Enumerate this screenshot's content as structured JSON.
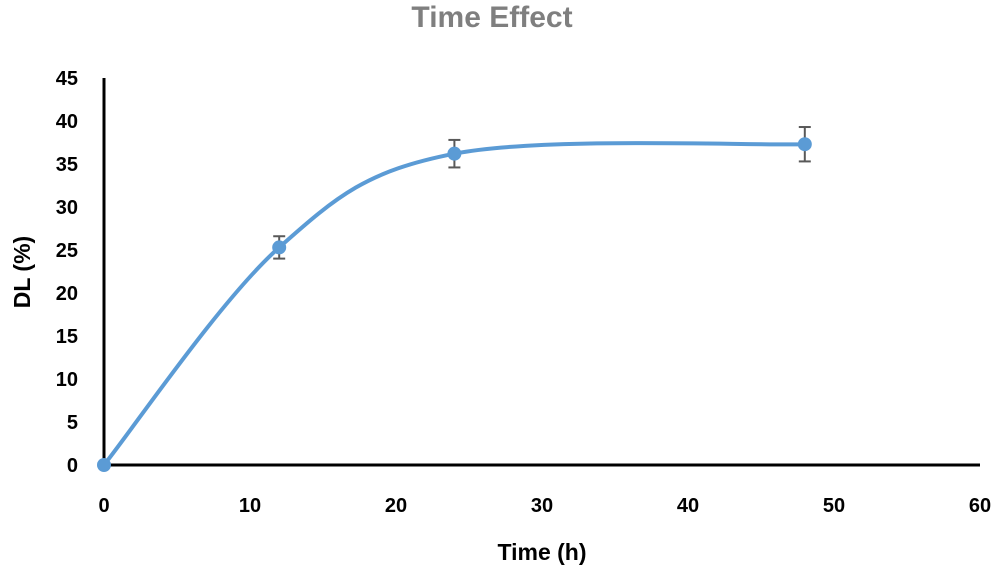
{
  "chart_data": {
    "type": "line",
    "title": "Time Effect",
    "xlabel": "Time (h)",
    "ylabel": "DL (%)",
    "xlim": [
      0,
      60
    ],
    "ylim": [
      0,
      45
    ],
    "xticks": [
      "0",
      "10",
      "20",
      "30",
      "40",
      "50",
      "60"
    ],
    "yticks": [
      "0",
      "5",
      "10",
      "15",
      "20",
      "25",
      "30",
      "35",
      "40",
      "45"
    ],
    "grid": false,
    "smooth": true,
    "series": [
      {
        "x": [
          0,
          12,
          24,
          48
        ],
        "y": [
          0,
          25.3,
          36.2,
          37.3
        ],
        "error": [
          0,
          1.3,
          1.6,
          2.0
        ],
        "color": "#5b9bd5"
      }
    ],
    "error_bar_color": "#595959"
  }
}
